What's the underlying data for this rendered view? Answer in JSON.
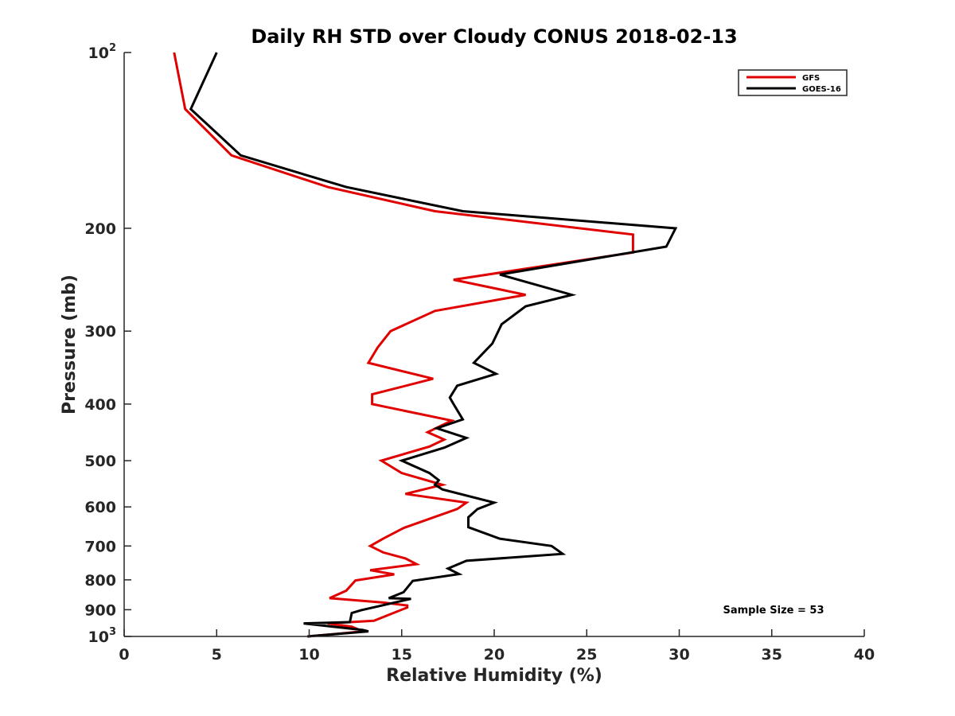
{
  "chart_data": {
    "type": "line",
    "title": "Daily RH STD over Cloudy CONUS 2018-02-13",
    "xlabel": "Relative Humidity (%)",
    "ylabel": "Pressure (mb)",
    "xlim": [
      0,
      40
    ],
    "ylim": [
      100,
      1000
    ],
    "y_scale": "log",
    "y_reversed": true,
    "x_ticks": [
      0,
      5,
      10,
      15,
      20,
      25,
      30,
      35,
      40
    ],
    "x_tick_labels": [
      "0",
      "5",
      "10",
      "15",
      "20",
      "25",
      "30",
      "35",
      "40"
    ],
    "y_ticks": [
      100,
      200,
      300,
      400,
      500,
      600,
      700,
      800,
      900,
      1000
    ],
    "y_tick_labels": [
      {
        "base": "10",
        "sup": "2"
      },
      {
        "base": "200",
        "sup": ""
      },
      {
        "base": "300",
        "sup": ""
      },
      {
        "base": "400",
        "sup": ""
      },
      {
        "base": "500",
        "sup": ""
      },
      {
        "base": "600",
        "sup": ""
      },
      {
        "base": "700",
        "sup": ""
      },
      {
        "base": "800",
        "sup": ""
      },
      {
        "base": "900",
        "sup": ""
      },
      {
        "base": "10",
        "sup": "3"
      }
    ],
    "grid": false,
    "legend_position": "top-right",
    "annotation": "Sample Size = 53",
    "series": [
      {
        "name": "GFS",
        "color": "#e00000",
        "points": [
          [
            2.7,
            100
          ],
          [
            3.3,
            125
          ],
          [
            5.8,
            150
          ],
          [
            11.0,
            170
          ],
          [
            16.8,
            187
          ],
          [
            27.5,
            205
          ],
          [
            27.5,
            220
          ],
          [
            17.8,
            245
          ],
          [
            21.7,
            260
          ],
          [
            16.8,
            277
          ],
          [
            14.4,
            300
          ],
          [
            13.7,
            320
          ],
          [
            13.2,
            340
          ],
          [
            16.7,
            362
          ],
          [
            13.4,
            385
          ],
          [
            13.4,
            400
          ],
          [
            17.7,
            427
          ],
          [
            16.4,
            447
          ],
          [
            17.3,
            460
          ],
          [
            16.5,
            473
          ],
          [
            13.9,
            500
          ],
          [
            15.0,
            525
          ],
          [
            17.2,
            550
          ],
          [
            15.2,
            570
          ],
          [
            18.5,
            590
          ],
          [
            18.0,
            605
          ],
          [
            15.1,
            652
          ],
          [
            14.0,
            680
          ],
          [
            13.3,
            700
          ],
          [
            14.0,
            718
          ],
          [
            15.2,
            735
          ],
          [
            15.8,
            752
          ],
          [
            13.3,
            770
          ],
          [
            14.6,
            783
          ],
          [
            12.5,
            802
          ],
          [
            12.0,
            835
          ],
          [
            11.1,
            860
          ],
          [
            14.0,
            875
          ],
          [
            15.3,
            885
          ],
          [
            15.3,
            892
          ],
          [
            13.5,
            940
          ],
          [
            11.0,
            950
          ],
          [
            12.3,
            962
          ],
          [
            12.9,
            980
          ],
          [
            11.5,
            990
          ],
          [
            9.9,
            1000
          ]
        ]
      },
      {
        "name": "GOES-16",
        "color": "#000000",
        "points": [
          [
            5.0,
            100
          ],
          [
            3.6,
            125
          ],
          [
            6.3,
            150
          ],
          [
            12.0,
            170
          ],
          [
            18.3,
            187
          ],
          [
            29.8,
            200
          ],
          [
            29.3,
            215
          ],
          [
            20.3,
            240
          ],
          [
            24.2,
            260
          ],
          [
            21.7,
            272
          ],
          [
            20.4,
            292
          ],
          [
            19.9,
            315
          ],
          [
            18.9,
            340
          ],
          [
            20.1,
            355
          ],
          [
            18.0,
            372
          ],
          [
            17.6,
            390
          ],
          [
            17.8,
            400
          ],
          [
            18.3,
            425
          ],
          [
            16.9,
            440
          ],
          [
            18.5,
            457
          ],
          [
            17.3,
            475
          ],
          [
            15.0,
            500
          ],
          [
            16.5,
            525
          ],
          [
            17.0,
            540
          ],
          [
            16.8,
            550
          ],
          [
            17.2,
            560
          ],
          [
            20.0,
            590
          ],
          [
            19.1,
            605
          ],
          [
            18.6,
            625
          ],
          [
            18.6,
            650
          ],
          [
            20.3,
            680
          ],
          [
            23.1,
            700
          ],
          [
            23.7,
            722
          ],
          [
            18.5,
            742
          ],
          [
            17.5,
            765
          ],
          [
            18.1,
            782
          ],
          [
            15.6,
            803
          ],
          [
            15.1,
            840
          ],
          [
            14.3,
            860
          ],
          [
            15.5,
            862
          ],
          [
            12.8,
            902
          ],
          [
            12.3,
            912
          ],
          [
            12.2,
            945
          ],
          [
            9.7,
            950
          ],
          [
            12.9,
            975
          ],
          [
            13.2,
            980
          ],
          [
            9.9,
            1000
          ]
        ]
      }
    ]
  }
}
